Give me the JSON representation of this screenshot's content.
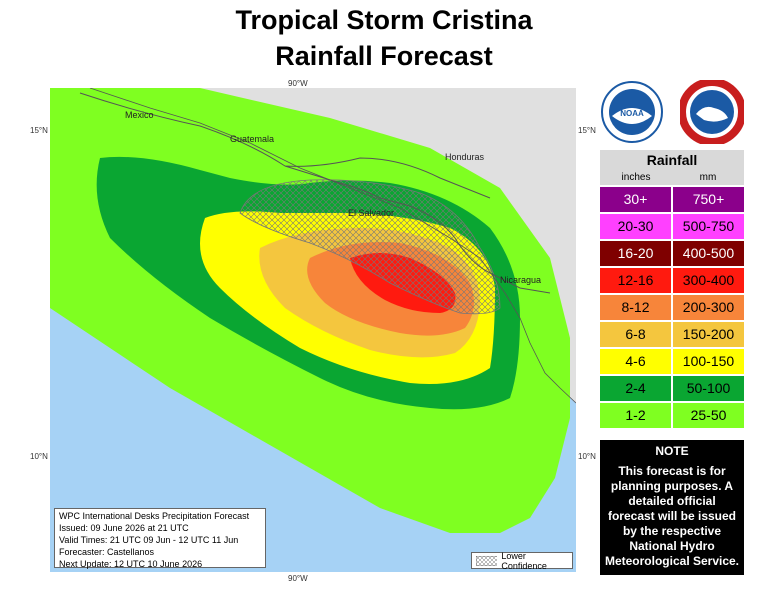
{
  "title_line1": "Tropical Storm Cristina",
  "title_line2": "Rainfall Forecast",
  "coords": {
    "top_lon": "90°W",
    "bottom_lon": "90°W",
    "left_lat_top": "15°N",
    "right_lat_top": "15°N",
    "left_lat_bottom": "10°N",
    "right_lat_bottom": "10°N"
  },
  "places": {
    "mexico": "Mexico",
    "guatemala": "Guatemala",
    "honduras": "Honduras",
    "el_salvador": "El Salvador",
    "nicaragua": "Nicaragua"
  },
  "legend": {
    "title": "Rainfall",
    "unit_in": "inches",
    "unit_mm": "mm",
    "rows": [
      {
        "in": "30+",
        "mm": "750+",
        "color": "#8b008b",
        "text": "#ffffff"
      },
      {
        "in": "20-30",
        "mm": "500-750",
        "color": "#ff40ff",
        "text": "#000000"
      },
      {
        "in": "16-20",
        "mm": "400-500",
        "color": "#7f0000",
        "text": "#ffffff"
      },
      {
        "in": "12-16",
        "mm": "300-400",
        "color": "#ff1a0f",
        "text": "#000000"
      },
      {
        "in": "8-12",
        "mm": "200-300",
        "color": "#f7853a",
        "text": "#000000"
      },
      {
        "in": "6-8",
        "mm": "150-200",
        "color": "#f4c63e",
        "text": "#000000"
      },
      {
        "in": "4-6",
        "mm": "100-150",
        "color": "#ffff00",
        "text": "#000000"
      },
      {
        "in": "2-4",
        "mm": "50-100",
        "color": "#0aa632",
        "text": "#000000"
      },
      {
        "in": "1-2",
        "mm": "25-50",
        "color": "#7fff21",
        "text": "#000000"
      }
    ]
  },
  "note": {
    "title": "NOTE",
    "text": "This forecast is for planning purposes. A detailed official forecast will be issued by the respective National Hydro Meteorological Service."
  },
  "info": {
    "line1": "WPC International Desks Precipitation Forecast",
    "line2": "Issued: 09 June 2026 at 21 UTC",
    "line3": "Valid Times: 21 UTC 09 Jun - 12 UTC 11 Jun",
    "line4": "Forecaster: Castellanos",
    "line5": "Next Update: 12 UTC 10 June 2026"
  },
  "lower_confidence_label": "Lower Confidence",
  "logos": {
    "noaa": "NOAA",
    "nws": "NATIONAL WEATHER SERVICE"
  },
  "colors": {
    "ocean": "#a6d2f5",
    "land": "#e0e0e0"
  }
}
